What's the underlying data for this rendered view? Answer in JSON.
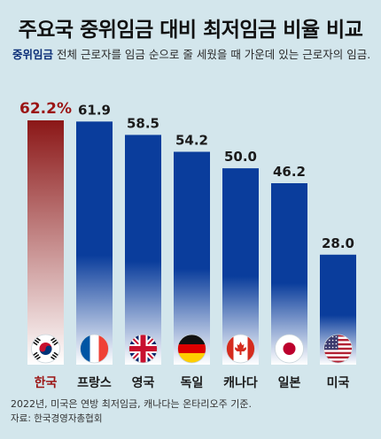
{
  "header": {
    "title": "주요국 중위임금 대비 최저임금 비율 비교",
    "definition_term": "중위임금",
    "definition_text": " 전체 근로자를 임금 순으로 줄 세웠을 때 가운데 있는 근로자의 임금."
  },
  "footer": {
    "note": "2022년, 미국은 연방 최저임금, 캐나다는 온타리오주 기준.",
    "source": "자료: 한국경영자총협회"
  },
  "colors": {
    "highlight_bar_top": "#8b1717",
    "highlight_bar_bottom": "#ffffff",
    "bar_top": "#0a3d9c",
    "bar_bottom": "#ffffff",
    "highlight_text": "#9b1414",
    "text": "#1b1b1b"
  },
  "chart_data": {
    "type": "bar",
    "title": "주요국 중위임금 대비 최저임금 비율 비교",
    "categories": [
      "한국",
      "프랑스",
      "영국",
      "독일",
      "캐나다",
      "일본",
      "미국"
    ],
    "values": [
      62.2,
      61.9,
      58.5,
      54.2,
      50.0,
      46.2,
      28.0
    ],
    "value_labels": [
      "62.2%",
      "61.9",
      "58.5",
      "54.2",
      "50.0",
      "46.2",
      "28.0"
    ],
    "unit": "%",
    "highlight_index": 0,
    "ylim": [
      0,
      62.2
    ],
    "flags": [
      "korea-flag-icon",
      "france-flag-icon",
      "uk-flag-icon",
      "germany-flag-icon",
      "canada-flag-icon",
      "japan-flag-icon",
      "usa-flag-icon"
    ],
    "grid": false,
    "legend": "none"
  }
}
